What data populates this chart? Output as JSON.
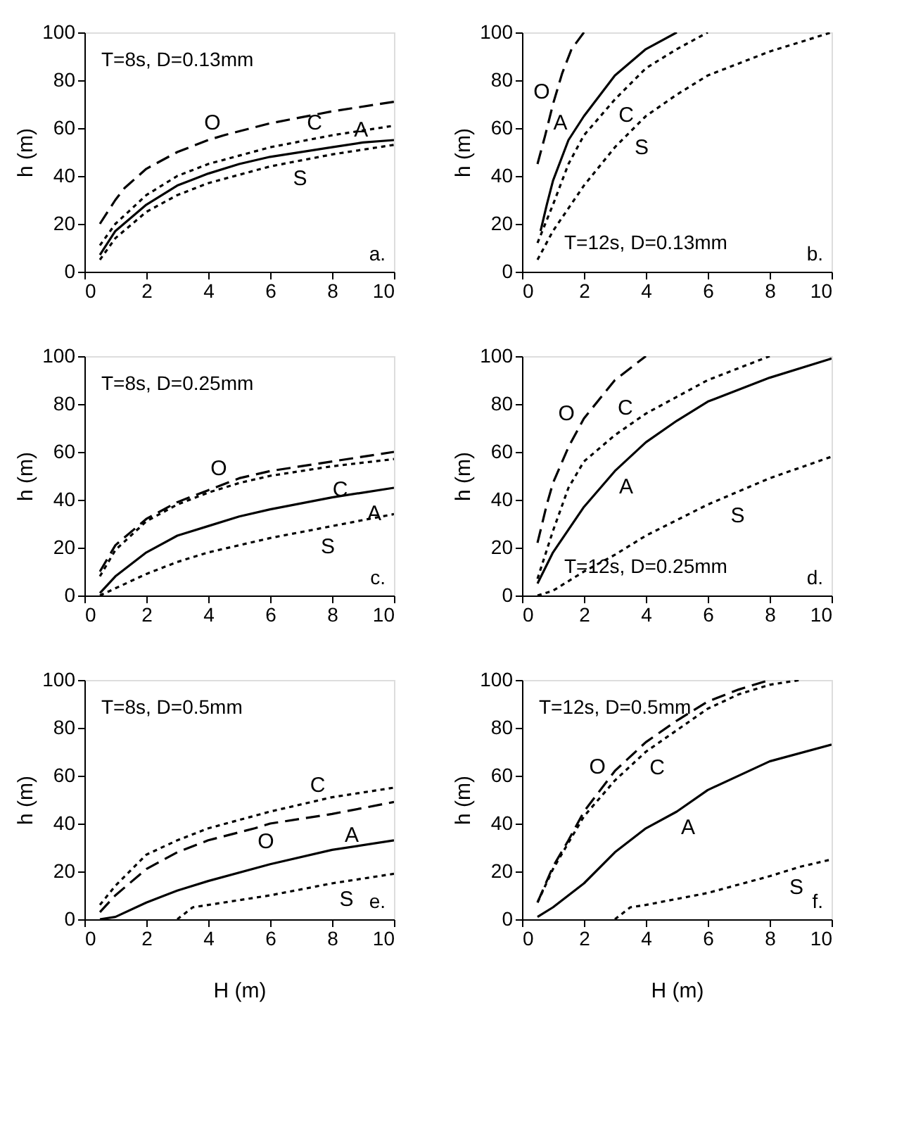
{
  "chart_data": [
    {
      "type": "line",
      "ylabel": "h (m)",
      "xlim": [
        0,
        10
      ],
      "ylim": [
        0,
        100
      ],
      "xticks": [
        0,
        2,
        4,
        6,
        8,
        10
      ],
      "yticks": [
        0,
        20,
        40,
        60,
        80,
        100
      ],
      "annotations": [
        "T=8s, D=0.13mm",
        "a.",
        {
          "text": "O",
          "x": 4.5,
          "y": 57
        },
        {
          "text": "C",
          "x": 7.8,
          "y": 57
        },
        {
          "text": "A",
          "x": 9.3,
          "y": 54
        },
        {
          "text": "S",
          "x": 6.6,
          "y": 45.5
        }
      ],
      "series": [
        {
          "color": "#000000",
          "line_style": "dashed",
          "x": [
            0.5,
            1,
            1.3,
            2,
            3,
            4,
            4.5,
            6,
            8,
            10
          ],
          "values": [
            20,
            30,
            35,
            43,
            50,
            55,
            57,
            62,
            67,
            71
          ]
        },
        {
          "color": "#000000",
          "line_style": "dotted",
          "x": [
            0.5,
            1,
            2,
            3,
            4,
            6,
            8,
            10
          ],
          "values": [
            11,
            20,
            32,
            40,
            45,
            52,
            57,
            61
          ]
        },
        {
          "color": "#000000",
          "line_style": "solid",
          "x": [
            0.5,
            1,
            2,
            3,
            4,
            5,
            6,
            8,
            9,
            10
          ],
          "values": [
            7,
            17,
            28,
            36,
            41,
            45,
            48,
            52,
            54,
            55
          ]
        },
        {
          "color": "#000000",
          "line_style": "dotted",
          "x": [
            0.5,
            1,
            2,
            3,
            4,
            6,
            8,
            10
          ],
          "values": [
            5,
            14,
            25,
            32,
            37,
            44,
            49,
            53
          ]
        }
      ]
    },
    {
      "type": "line",
      "ylabel": "h (m)",
      "xlim": [
        0,
        10
      ],
      "ylim": [
        0,
        100
      ],
      "xticks": [
        0,
        2,
        4,
        6,
        8,
        10
      ],
      "yticks": [
        0,
        20,
        40,
        60,
        80,
        100
      ],
      "annotations": [
        "T=12s, D=0.13mm",
        "b.",
        {
          "text": "O",
          "x": 1,
          "y": 70
        },
        {
          "text": "A",
          "x": 1.6,
          "y": 57
        },
        {
          "text": "C",
          "x": 3,
          "y": 72
        },
        {
          "text": "S",
          "x": 3.5,
          "y": 58.5
        }
      ],
      "series": [
        {
          "color": "#000000",
          "line_style": "dashed",
          "x": [
            0.5,
            0.75,
            1,
            1.3,
            1.6,
            2
          ],
          "values": [
            45,
            57,
            70,
            83,
            93,
            100
          ]
        },
        {
          "color": "#000000",
          "line_style": "solid",
          "x": [
            0.6,
            0.8,
            1,
            1.5,
            2,
            3,
            4,
            5
          ],
          "values": [
            17,
            28,
            38,
            55,
            65,
            82,
            93,
            100
          ]
        },
        {
          "color": "#000000",
          "line_style": "dotted",
          "x": [
            0.5,
            1,
            1.5,
            2,
            3,
            4,
            5,
            6
          ],
          "values": [
            12,
            28,
            45,
            57,
            72,
            85,
            93,
            100
          ]
        },
        {
          "color": "#000000",
          "line_style": "dotted",
          "x": [
            0.5,
            1,
            2,
            3,
            4,
            5,
            6,
            8,
            10
          ],
          "values": [
            5,
            17,
            36,
            52,
            65,
            74,
            82,
            92,
            100
          ]
        }
      ]
    },
    {
      "type": "line",
      "ylabel": "h (m)",
      "xlim": [
        0,
        10
      ],
      "ylim": [
        0,
        100
      ],
      "xticks": [
        0,
        2,
        4,
        6,
        8,
        10
      ],
      "yticks": [
        0,
        20,
        40,
        60,
        80,
        100
      ],
      "annotations": [
        "T=8s, D=0.25mm",
        "c.",
        {
          "text": "O",
          "x": 4.7,
          "y": 48
        },
        {
          "text": "C",
          "x": 7.9,
          "y": 51
        },
        {
          "text": "A",
          "x": 9,
          "y": 41
        },
        {
          "text": "S",
          "x": 7.5,
          "y": 27
        }
      ],
      "series": [
        {
          "color": "#000000",
          "line_style": "dashed",
          "x": [
            0.5,
            1,
            2,
            3,
            4,
            5,
            6,
            8,
            10
          ],
          "values": [
            10,
            21,
            32,
            39,
            44,
            49,
            52,
            56,
            60
          ]
        },
        {
          "color": "#000000",
          "line_style": "dotted",
          "x": [
            0.5,
            1,
            2,
            3,
            4,
            5,
            6,
            8,
            10
          ],
          "values": [
            8,
            19,
            31,
            38,
            43,
            47,
            50,
            54,
            57
          ]
        },
        {
          "color": "#000000",
          "line_style": "solid",
          "x": [
            0.5,
            1,
            2,
            3,
            4,
            5,
            6,
            8,
            9,
            10
          ],
          "values": [
            1,
            8,
            18,
            25,
            29,
            33,
            36,
            41,
            43,
            45
          ]
        },
        {
          "color": "#000000",
          "line_style": "dotted",
          "x": [
            0.5,
            1,
            2,
            3,
            4,
            6,
            8,
            10
          ],
          "values": [
            0,
            3,
            9,
            14,
            18,
            24,
            29,
            34
          ]
        }
      ]
    },
    {
      "type": "line",
      "ylabel": "h (m)",
      "xlim": [
        0,
        10
      ],
      "ylim": [
        0,
        100
      ],
      "xticks": [
        0,
        2,
        4,
        6,
        8,
        10
      ],
      "yticks": [
        0,
        20,
        40,
        60,
        80,
        100
      ],
      "annotations": [
        "T=12s, D=0.25mm",
        "d.",
        {
          "text": "O",
          "x": 1.8,
          "y": 71
        },
        {
          "text": "C",
          "x": 3.7,
          "y": 73.3
        },
        {
          "text": "A",
          "x": 3,
          "y": 52
        },
        {
          "text": "S",
          "x": 6.6,
          "y": 40
        }
      ],
      "series": [
        {
          "color": "#000000",
          "line_style": "dashed",
          "x": [
            0.5,
            0.8,
            1,
            1.5,
            2,
            3,
            4
          ],
          "values": [
            22,
            38,
            47,
            62,
            74,
            90,
            100
          ]
        },
        {
          "color": "#000000",
          "line_style": "dotted",
          "x": [
            0.5,
            1,
            1.5,
            2,
            3,
            4,
            6,
            8
          ],
          "values": [
            7,
            27,
            45,
            56,
            67,
            76,
            90,
            100
          ]
        },
        {
          "color": "#000000",
          "line_style": "solid",
          "x": [
            0.5,
            1,
            2,
            3,
            4,
            5,
            6,
            8,
            10
          ],
          "values": [
            5,
            18,
            37,
            52,
            64,
            73,
            81,
            91,
            99
          ]
        },
        {
          "color": "#000000",
          "line_style": "dotted",
          "x": [
            0.5,
            1,
            2,
            3,
            4,
            6,
            8,
            10
          ],
          "values": [
            0,
            2,
            10,
            17,
            25,
            38,
            49,
            58
          ]
        }
      ]
    },
    {
      "type": "line",
      "xlabel": "H (m)",
      "ylabel": "h (m)",
      "xlim": [
        0,
        10
      ],
      "ylim": [
        0,
        100
      ],
      "xticks": [
        0,
        2,
        4,
        6,
        8,
        10
      ],
      "yticks": [
        0,
        20,
        40,
        60,
        80,
        100
      ],
      "annotations": [
        "T=8s, D=0.5mm",
        "e.",
        {
          "text": "C",
          "x": 7.9,
          "y": 51
        },
        {
          "text": "O",
          "x": 5.5,
          "y": 39
        },
        {
          "text": "A",
          "x": 9,
          "y": 30
        },
        {
          "text": "S",
          "x": 8.1,
          "y": 15
        }
      ],
      "series": [
        {
          "color": "#000000",
          "line_style": "dotted",
          "x": [
            0.5,
            1,
            2,
            3,
            4,
            6,
            8,
            10
          ],
          "values": [
            6,
            14,
            27,
            33,
            38,
            45,
            51,
            55
          ]
        },
        {
          "color": "#000000",
          "line_style": "dashed",
          "x": [
            0.5,
            1,
            2,
            3,
            4,
            5.5,
            6,
            8,
            10
          ],
          "values": [
            3,
            10,
            21,
            28,
            33,
            38,
            40,
            44,
            49
          ]
        },
        {
          "color": "#000000",
          "line_style": "solid",
          "x": [
            0.5,
            1,
            2,
            3,
            4,
            6,
            8,
            10
          ],
          "values": [
            0,
            1,
            7,
            12,
            16,
            23,
            29,
            33
          ]
        },
        {
          "color": "#000000",
          "line_style": "dotted",
          "x": [
            3,
            3.5,
            4,
            6,
            8,
            10
          ],
          "values": [
            0,
            5,
            6,
            10,
            15,
            19
          ]
        }
      ]
    },
    {
      "type": "line",
      "xlabel": "H (m)",
      "ylabel": "h (m)",
      "xlim": [
        0,
        10
      ],
      "ylim": [
        0,
        100
      ],
      "xticks": [
        0,
        2,
        4,
        6,
        8,
        10
      ],
      "yticks": [
        0,
        20,
        40,
        60,
        80,
        100
      ],
      "annotations": [
        "T=12s, D=0.5mm",
        "f.",
        {
          "text": "O",
          "x": 2.8,
          "y": 58.6
        },
        {
          "text": "C",
          "x": 4,
          "y": 70
        },
        {
          "text": "A",
          "x": 5,
          "y": 45
        },
        {
          "text": "S",
          "x": 8.5,
          "y": 20
        }
      ],
      "series": [
        {
          "color": "#000000",
          "line_style": "dashed",
          "x": [
            0.5,
            1,
            1.5,
            2,
            3,
            4,
            5,
            6,
            7,
            8
          ],
          "values": [
            7,
            22,
            33,
            45,
            62,
            74,
            83,
            91,
            96,
            100
          ]
        },
        {
          "color": "#000000",
          "line_style": "dotted",
          "x": [
            0.5,
            1,
            1.5,
            2,
            3,
            4,
            5,
            6,
            7,
            8,
            9
          ],
          "values": [
            7,
            21,
            32,
            43,
            58,
            70,
            79,
            88,
            94,
            98,
            100
          ]
        },
        {
          "color": "#000000",
          "line_style": "solid",
          "x": [
            0.5,
            1,
            2,
            3,
            4,
            5,
            6,
            8,
            10
          ],
          "values": [
            1,
            5,
            15,
            28,
            38,
            45,
            54,
            66,
            73
          ]
        },
        {
          "color": "#000000",
          "line_style": "dotted",
          "x": [
            3,
            3.5,
            4,
            6,
            8,
            9,
            10
          ],
          "values": [
            0,
            5,
            6,
            11,
            18,
            22,
            25
          ]
        }
      ]
    }
  ]
}
